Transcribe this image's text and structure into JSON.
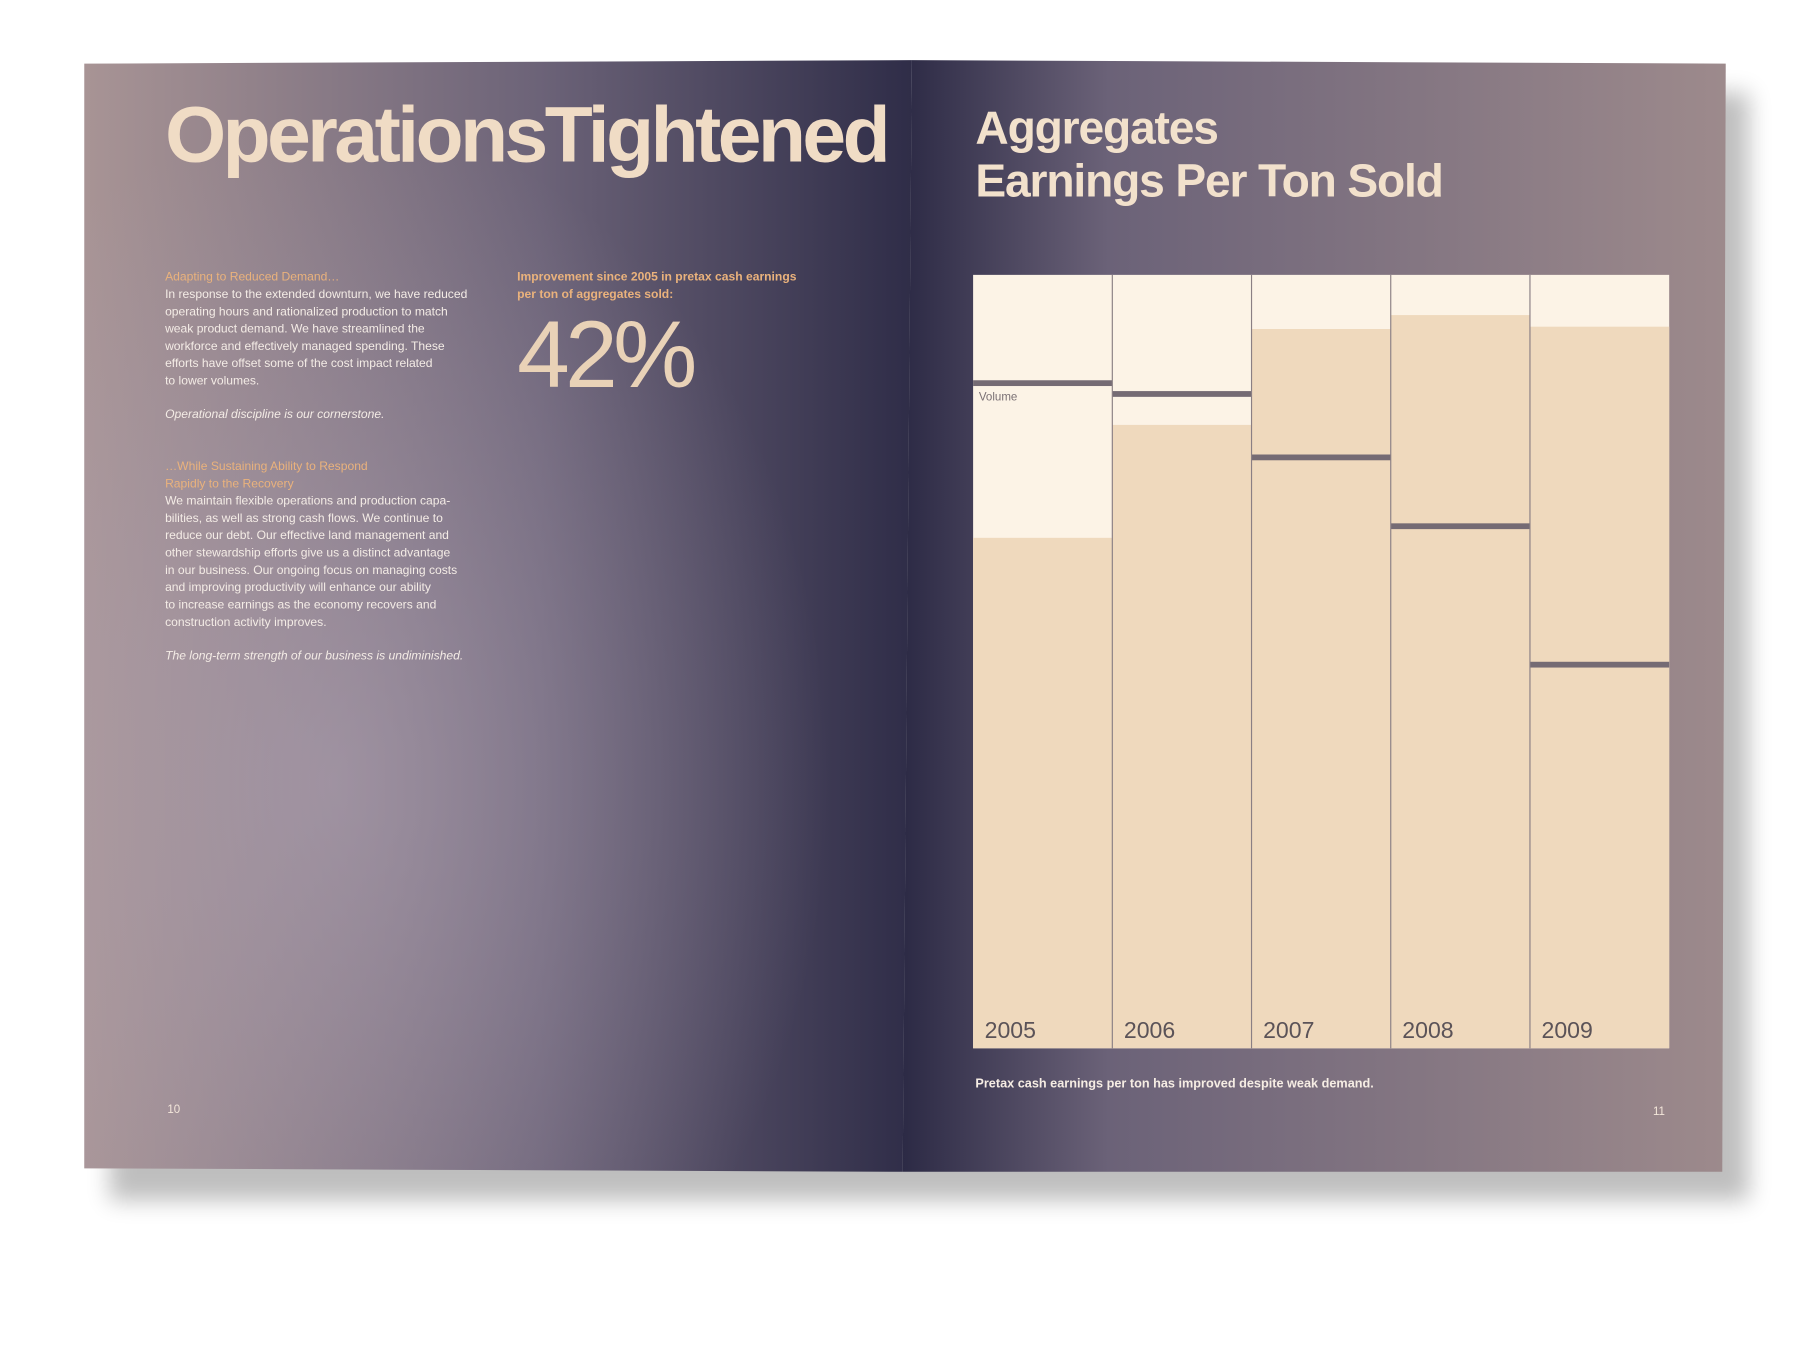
{
  "left_page": {
    "title": "OperationsTightened",
    "sections": [
      {
        "heading": [
          "Adapting to Reduced Demand…"
        ],
        "lines": [
          "In response to the extended downturn, we have reduced",
          "operating hours and rationalized production to match",
          "weak product demand. We have streamlined the",
          "workforce and effectively managed spending. These",
          "efforts have offset some of the cost impact related",
          "to lower volumes."
        ],
        "tagline": "Operational discipline is our cornerstone."
      },
      {
        "heading": [
          "…While Sustaining Ability to Respond",
          "Rapidly to the Recovery"
        ],
        "lines": [
          "We maintain flexible operations and production capa-",
          "bilities, as well as strong cash flows. We continue to",
          "reduce our debt. Our effective land management and",
          "other stewardship efforts give us a distinct advantage",
          "in our business. Our ongoing focus on managing costs",
          "and improving productivity will enhance our ability",
          "to increase earnings as the economy recovers and",
          "construction activity improves."
        ],
        "tagline": "The long-term strength of our business is undiminished."
      }
    ],
    "stat": {
      "caption": [
        "Improvement since 2005 in pretax cash earnings",
        "per ton of aggregates sold:"
      ],
      "value": "42%"
    },
    "page_number": "10"
  },
  "right_page": {
    "page_number": "11"
  },
  "chart_data": {
    "type": "bar",
    "title": [
      "Aggregates",
      "Earnings Per Ton Sold"
    ],
    "caption": "Pretax cash earnings per ton has improved despite weak demand.",
    "categories": [
      "2005",
      "2006",
      "2007",
      "2008",
      "2009"
    ],
    "background_color": "#fcf3e6",
    "series": [
      {
        "color": "#efd9bd",
        "values": [
          66,
          80.6,
          93,
          94.8,
          93.3
        ]
      },
      {
        "name": "Volume",
        "color": "#756b74",
        "values": [
          86,
          84.6,
          76.4,
          67.5,
          49.6
        ]
      }
    ],
    "ylim": [
      0,
      100
    ]
  }
}
